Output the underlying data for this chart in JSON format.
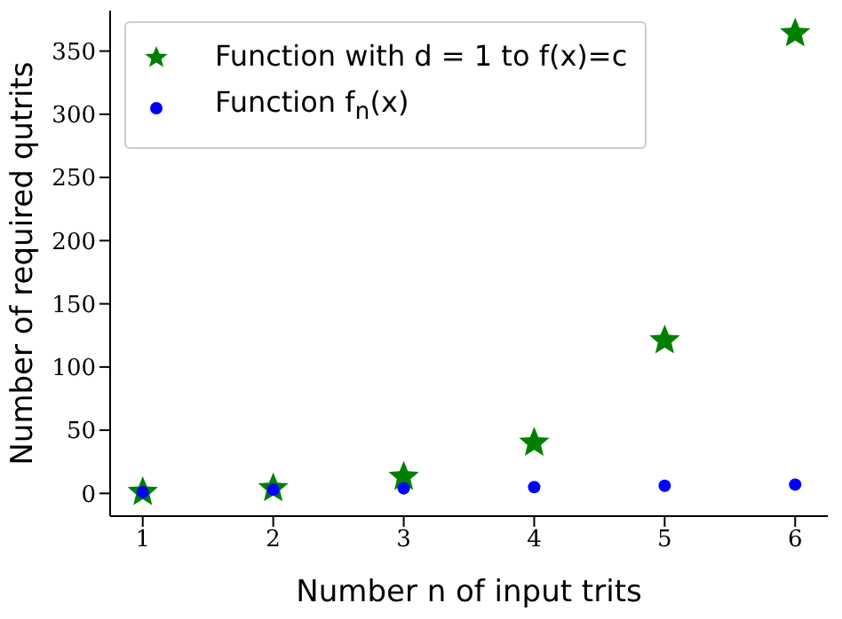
{
  "chart_data": {
    "type": "scatter",
    "xlabel": "Number n of input trits",
    "ylabel": "Number of required qutrits",
    "x": [
      1,
      2,
      3,
      4,
      5,
      6
    ],
    "series": [
      {
        "name": "Function with d = 1 to f(x)=c",
        "color": "#008000",
        "marker": "star",
        "values": [
          1,
          4,
          13,
          40,
          121,
          364
        ]
      },
      {
        "name": "Function f$_{n}$(x)",
        "color": "#0000ff",
        "marker": "circle",
        "values": [
          1,
          3,
          4,
          5,
          6,
          7
        ]
      }
    ],
    "xlim": [
      0.75,
      6.25
    ],
    "xticks": [
      1,
      2,
      3,
      4,
      5,
      6
    ],
    "ylim": [
      -18,
      382
    ],
    "yticks": [
      0,
      50,
      100,
      150,
      200,
      250,
      300,
      350
    ],
    "grid": false,
    "legend": "top left"
  }
}
